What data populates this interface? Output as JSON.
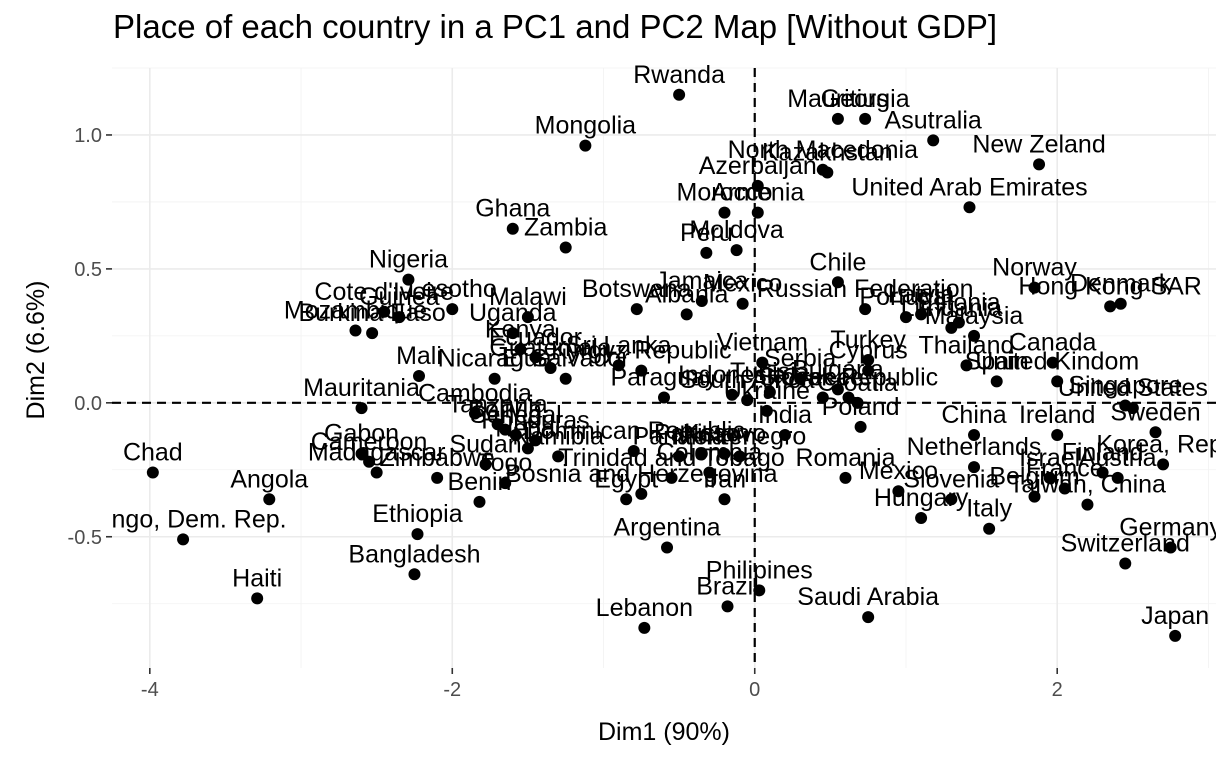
{
  "chart_data": {
    "type": "scatter",
    "title": "Place of each country in a PC1 and PC2 Map [Without GDP]",
    "xlabel": "Dim1 (90%)",
    "ylabel": "Dim2 (6.6%)",
    "xlim": [
      -4.25,
      3.05
    ],
    "ylim": [
      -0.99,
      1.25
    ],
    "x_ticks": [
      -4,
      -2,
      0,
      2
    ],
    "y_ticks": [
      -0.5,
      0.0,
      0.5,
      1.0
    ],
    "x_tick_labels": [
      "-4",
      "-2",
      "0",
      "2"
    ],
    "y_tick_labels": [
      "-0.5",
      "0.0",
      "0.5",
      "1.0"
    ],
    "grid": true,
    "reference_lines": [
      {
        "axis": "x",
        "value": 0,
        "style": "dashed"
      },
      {
        "axis": "y",
        "value": 0,
        "style": "dashed"
      }
    ],
    "points": [
      {
        "label": "Chad",
        "x": -3.98,
        "y": -0.26
      },
      {
        "label": "Angola",
        "x": -3.21,
        "y": -0.36
      },
      {
        "label": "Congo, Dem. Rep.",
        "x": -3.78,
        "y": -0.51
      },
      {
        "label": "Haiti",
        "x": -3.29,
        "y": -0.73
      },
      {
        "label": "Ethiopia",
        "x": -2.23,
        "y": -0.49
      },
      {
        "label": "Bangladesh",
        "x": -2.25,
        "y": -0.64
      },
      {
        "label": "Mauritania",
        "x": -2.6,
        "y": -0.02
      },
      {
        "label": "Gabon",
        "x": -2.6,
        "y": -0.19
      },
      {
        "label": "Madagascar",
        "x": -2.5,
        "y": -0.26
      },
      {
        "label": "Cameroon",
        "x": -2.55,
        "y": -0.22
      },
      {
        "label": "Zimbabwe",
        "x": -2.1,
        "y": -0.28
      },
      {
        "label": "Benin",
        "x": -1.82,
        "y": -0.37
      },
      {
        "label": "Nigeria",
        "x": -2.29,
        "y": 0.46
      },
      {
        "label": "Mozambique",
        "x": -2.64,
        "y": 0.27
      },
      {
        "label": "Burkina Faso",
        "x": -2.53,
        "y": 0.26
      },
      {
        "label": "Cote d'Ivoire",
        "x": -2.45,
        "y": 0.34
      },
      {
        "label": "Lesotho",
        "x": -2.0,
        "y": 0.35
      },
      {
        "label": "Malawi",
        "x": -1.5,
        "y": 0.32
      },
      {
        "label": "Guinea",
        "x": -2.35,
        "y": 0.32
      },
      {
        "label": "Uganda",
        "x": -1.6,
        "y": 0.26
      },
      {
        "label": "Mali",
        "x": -2.22,
        "y": 0.1
      },
      {
        "label": "Nicaragua",
        "x": -1.72,
        "y": 0.09
      },
      {
        "label": "Kenya",
        "x": -1.55,
        "y": 0.2
      },
      {
        "label": "Ecuador",
        "x": -1.45,
        "y": 0.17
      },
      {
        "label": "Guatemala",
        "x": -1.35,
        "y": 0.13
      },
      {
        "label": "El Salvador",
        "x": -1.25,
        "y": 0.09
      },
      {
        "label": "Sri Lanka",
        "x": -0.9,
        "y": 0.14
      },
      {
        "label": "Kyrgyz Republic",
        "x": -0.75,
        "y": 0.12
      },
      {
        "label": "Ghana",
        "x": -1.6,
        "y": 0.65
      },
      {
        "label": "Zambia",
        "x": -1.25,
        "y": 0.58
      },
      {
        "label": "Mongolia",
        "x": -1.12,
        "y": 0.96
      },
      {
        "label": "Rwanda",
        "x": -0.5,
        "y": 1.15
      },
      {
        "label": "Botswana",
        "x": -0.78,
        "y": 0.35
      },
      {
        "label": "Albania",
        "x": -0.45,
        "y": 0.33
      },
      {
        "label": "Jamaica",
        "x": -0.35,
        "y": 0.38
      },
      {
        "label": "Mexico",
        "x": -0.08,
        "y": 0.37
      },
      {
        "label": "Peru",
        "x": -0.32,
        "y": 0.56
      },
      {
        "label": "Moldova",
        "x": -0.12,
        "y": 0.57
      },
      {
        "label": "Morocco",
        "x": -0.2,
        "y": 0.71
      },
      {
        "label": "Armenia",
        "x": 0.02,
        "y": 0.71
      },
      {
        "label": "Azerbaijan",
        "x": 0.02,
        "y": 0.81
      },
      {
        "label": "North Macedonia",
        "x": 0.45,
        "y": 0.87
      },
      {
        "label": "Kazakhstan",
        "x": 0.48,
        "y": 0.86
      },
      {
        "label": "Mauritius",
        "x": 0.55,
        "y": 1.06
      },
      {
        "label": "Georgia",
        "x": 0.73,
        "y": 1.06
      },
      {
        "label": "Asutralia",
        "x": 1.18,
        "y": 0.98
      },
      {
        "label": "New Zeland",
        "x": 1.88,
        "y": 0.89
      },
      {
        "label": "United Arab Emirates",
        "x": 1.42,
        "y": 0.73
      },
      {
        "label": "Chile",
        "x": 0.55,
        "y": 0.45
      },
      {
        "label": "Russian Federation",
        "x": 0.73,
        "y": 0.35
      },
      {
        "label": "Portugal",
        "x": 1.0,
        "y": 0.32
      },
      {
        "label": "Latvia",
        "x": 1.1,
        "y": 0.33
      },
      {
        "label": "Estonia",
        "x": 1.35,
        "y": 0.3
      },
      {
        "label": "Lithuania",
        "x": 1.3,
        "y": 0.28
      },
      {
        "label": "Malaysia",
        "x": 1.45,
        "y": 0.25
      },
      {
        "label": "Vietnam",
        "x": 0.05,
        "y": 0.15
      },
      {
        "label": "Turkey",
        "x": 0.75,
        "y": 0.16
      },
      {
        "label": "Thailand",
        "x": 1.4,
        "y": 0.14
      },
      {
        "label": "Spain",
        "x": 1.6,
        "y": 0.08
      },
      {
        "label": "Canada",
        "x": 1.97,
        "y": 0.15
      },
      {
        "label": "Norway",
        "x": 1.85,
        "y": 0.43
      },
      {
        "label": "Hong Kong SAR",
        "x": 2.35,
        "y": 0.36
      },
      {
        "label": "Denmark",
        "x": 2.42,
        "y": 0.37
      },
      {
        "label": "United Kindom",
        "x": 2.0,
        "y": 0.08
      },
      {
        "label": "Cyprus",
        "x": 0.75,
        "y": 0.12
      },
      {
        "label": "Serbia",
        "x": 0.3,
        "y": 0.09
      },
      {
        "label": "Bulgaria",
        "x": 0.55,
        "y": 0.05
      },
      {
        "label": "Slovak Republic",
        "x": 0.62,
        "y": 0.02
      },
      {
        "label": "Croatia",
        "x": 0.68,
        "y": 0.0
      },
      {
        "label": "Greece",
        "x": 0.45,
        "y": 0.02
      },
      {
        "label": "Tunisia",
        "x": 0.1,
        "y": 0.04
      },
      {
        "label": "Indonesia",
        "x": -0.15,
        "y": 0.03
      },
      {
        "label": "South Africa",
        "x": -0.05,
        "y": 0.01
      },
      {
        "label": "Ukraine",
        "x": 0.08,
        "y": -0.03
      },
      {
        "label": "Paraguay",
        "x": -0.6,
        "y": 0.02
      },
      {
        "label": "Cambodia",
        "x": -1.85,
        "y": -0.04
      },
      {
        "label": "Bolivia",
        "x": -1.65,
        "y": -0.1
      },
      {
        "label": "Tanzania",
        "x": -1.7,
        "y": -0.08
      },
      {
        "label": "Senegal",
        "x": -1.58,
        "y": -0.12
      },
      {
        "label": "Honduras",
        "x": -1.45,
        "y": -0.14
      },
      {
        "label": "Nepal",
        "x": -1.5,
        "y": -0.17
      },
      {
        "label": "Sudan",
        "x": -1.78,
        "y": -0.23
      },
      {
        "label": "Togo",
        "x": -1.65,
        "y": -0.3
      },
      {
        "label": "Namibia",
        "x": -1.3,
        "y": -0.2
      },
      {
        "label": "Dominican Republic",
        "x": -0.8,
        "y": -0.18
      },
      {
        "label": "Panama",
        "x": -0.5,
        "y": -0.2
      },
      {
        "label": "Pakistan",
        "x": -0.35,
        "y": -0.19
      },
      {
        "label": "Kosovo",
        "x": -0.2,
        "y": -0.19
      },
      {
        "label": "Montenegro",
        "x": -0.1,
        "y": -0.2
      },
      {
        "label": "India",
        "x": 0.2,
        "y": -0.12
      },
      {
        "label": "Colombia",
        "x": -0.3,
        "y": -0.26
      },
      {
        "label": "Trinidad and Tobago",
        "x": -0.55,
        "y": -0.28
      },
      {
        "label": "Bosnia and Herzegovina",
        "x": -0.75,
        "y": -0.34
      },
      {
        "label": "Egypt",
        "x": -0.85,
        "y": -0.36
      },
      {
        "label": "Iran",
        "x": -0.2,
        "y": -0.36
      },
      {
        "label": "Romania",
        "x": 0.6,
        "y": -0.28
      },
      {
        "label": "Argentina",
        "x": -0.58,
        "y": -0.54
      },
      {
        "label": "Brazil",
        "x": -0.18,
        "y": -0.76
      },
      {
        "label": "Lebanon",
        "x": -0.73,
        "y": -0.84
      },
      {
        "label": "Philipines",
        "x": 0.03,
        "y": -0.7
      },
      {
        "label": "Saudi Arabia",
        "x": 0.75,
        "y": -0.8
      },
      {
        "label": "Poland",
        "x": 0.7,
        "y": -0.09
      },
      {
        "label": "Ireland",
        "x": 2.0,
        "y": -0.12
      },
      {
        "label": "United States",
        "x": 2.5,
        "y": -0.02
      },
      {
        "label": "Singapore",
        "x": 2.45,
        "y": -0.01
      },
      {
        "label": "China",
        "x": 1.45,
        "y": -0.12
      },
      {
        "label": "Netherlands",
        "x": 1.45,
        "y": -0.24
      },
      {
        "label": "Sweden",
        "x": 2.65,
        "y": -0.11
      },
      {
        "label": "Finland",
        "x": 2.3,
        "y": -0.26
      },
      {
        "label": "Korea, Rep.",
        "x": 2.7,
        "y": -0.23
      },
      {
        "label": "Israel",
        "x": 1.95,
        "y": -0.28
      },
      {
        "label": "France",
        "x": 2.05,
        "y": -0.32
      },
      {
        "label": "Austria",
        "x": 2.4,
        "y": -0.28
      },
      {
        "label": "Belgium",
        "x": 1.85,
        "y": -0.35
      },
      {
        "label": "Mexico",
        "x": 0.95,
        "y": -0.33
      },
      {
        "label": "Slovenia",
        "x": 1.3,
        "y": -0.36
      },
      {
        "label": "Hungary",
        "x": 1.1,
        "y": -0.43
      },
      {
        "label": "Italy",
        "x": 1.55,
        "y": -0.47
      },
      {
        "label": "Taiwan, China",
        "x": 2.2,
        "y": -0.38
      },
      {
        "label": "Germany",
        "x": 2.75,
        "y": -0.54
      },
      {
        "label": "Switzerland",
        "x": 2.45,
        "y": -0.6
      },
      {
        "label": "Japan",
        "x": 2.78,
        "y": -0.87
      }
    ]
  }
}
